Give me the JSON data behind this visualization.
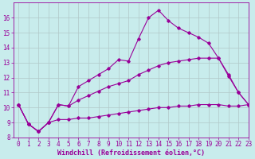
{
  "xlabel": "Windchill (Refroidissement éolien,°C)",
  "bg_color": "#c8ecec",
  "line_color": "#990099",
  "grid_color": "#b0c8c8",
  "x_all": [
    0,
    1,
    2,
    3,
    4,
    5,
    6,
    7,
    8,
    9,
    10,
    11,
    12,
    13,
    14,
    15,
    16,
    17,
    18,
    19,
    20,
    21,
    22,
    23
  ],
  "y_series1": [
    10.2,
    8.9,
    8.4,
    9.0,
    10.2,
    10.1,
    11.4,
    11.8,
    12.2,
    12.6,
    13.2,
    13.1,
    14.6,
    16.0,
    16.5,
    15.8,
    15.3,
    15.0,
    14.7,
    14.3,
    13.3,
    12.1,
    11.0,
    10.2
  ],
  "y_series2": [
    10.2,
    8.9,
    8.4,
    9.0,
    10.2,
    10.1,
    10.5,
    10.8,
    11.1,
    11.4,
    11.6,
    11.8,
    12.2,
    12.5,
    12.8,
    13.0,
    13.1,
    13.2,
    13.3,
    13.3,
    13.3,
    12.2,
    11.0,
    10.2
  ],
  "y_series3": [
    10.2,
    8.9,
    8.4,
    9.0,
    9.2,
    9.2,
    9.3,
    9.3,
    9.4,
    9.5,
    9.6,
    9.7,
    9.8,
    9.9,
    10.0,
    10.0,
    10.1,
    10.1,
    10.2,
    10.2,
    10.2,
    10.1,
    10.1,
    10.2
  ],
  "ylim": [
    8,
    17
  ],
  "xlim": [
    -0.5,
    23
  ],
  "yticks": [
    8,
    9,
    10,
    11,
    12,
    13,
    14,
    15,
    16
  ],
  "xticks": [
    0,
    1,
    2,
    3,
    4,
    5,
    6,
    7,
    8,
    9,
    10,
    11,
    12,
    13,
    14,
    15,
    16,
    17,
    18,
    19,
    20,
    21,
    22,
    23
  ],
  "marker": "D",
  "markersize": 1.8,
  "linewidth": 0.8,
  "fontsize_label": 6.0,
  "fontsize_tick": 5.5
}
